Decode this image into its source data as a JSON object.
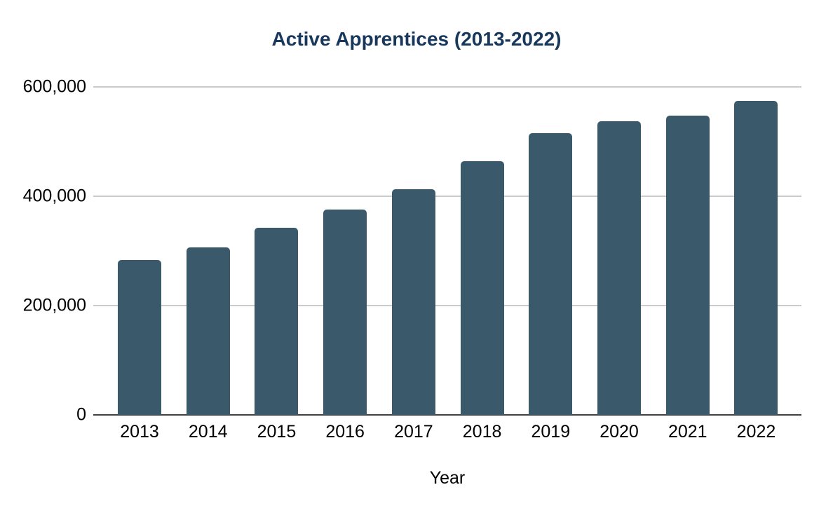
{
  "chart_data": {
    "type": "bar",
    "title": "Active Apprentices (2013-2022)",
    "xlabel": "Year",
    "ylabel": "",
    "categories": [
      "2013",
      "2014",
      "2015",
      "2016",
      "2017",
      "2018",
      "2019",
      "2020",
      "2021",
      "2022"
    ],
    "values": [
      283000,
      306000,
      342000,
      376000,
      413000,
      464000,
      515000,
      537000,
      547000,
      574000
    ],
    "ylim": [
      0,
      600000
    ],
    "yticks": [
      0,
      200000,
      400000,
      600000
    ],
    "ytick_labels": [
      "0",
      "200,000",
      "400,000",
      "600,000"
    ],
    "grid": "horizontal-major-only",
    "legend": "none",
    "colors": {
      "bar": "#3A5A6B",
      "title": "#17375C",
      "tick_label": "#000000",
      "gridline": "#CBCBCB",
      "axis_line": "#3F3F3F",
      "background": "#FFFFFF"
    }
  }
}
